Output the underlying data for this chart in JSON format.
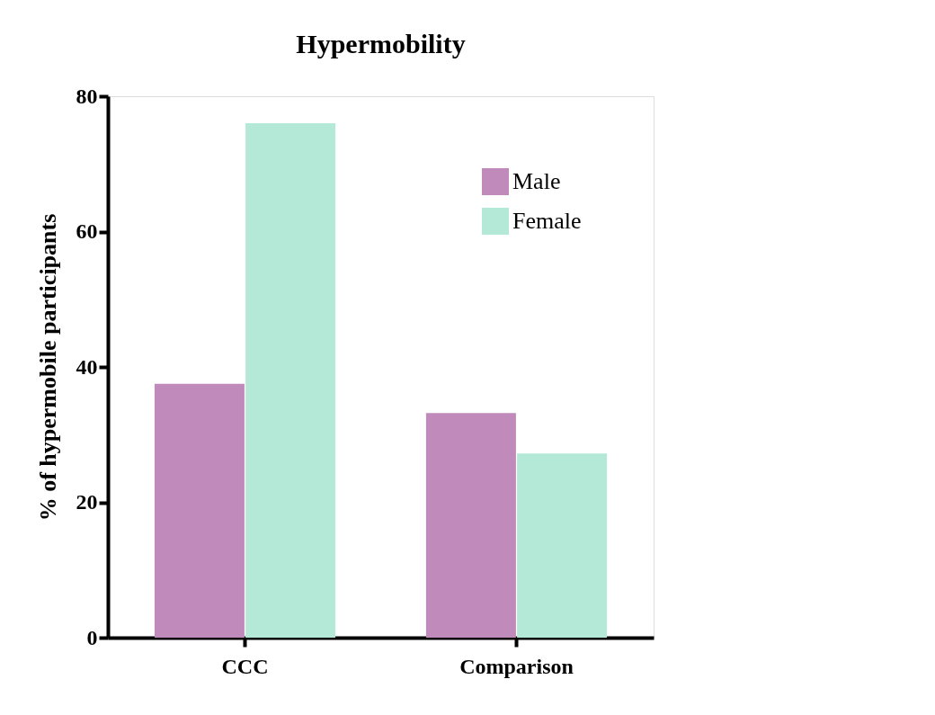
{
  "chart_data": {
    "type": "bar",
    "title": "Hypermobility",
    "ylabel": "% of hypermobile participants",
    "categories": [
      "CCC",
      "Comparison"
    ],
    "series": [
      {
        "name": "Male",
        "color": "#c08bba",
        "values": [
          37.5,
          33.2
        ]
      },
      {
        "name": "Female",
        "color": "#b5e9d7",
        "values": [
          76.0,
          27.2
        ]
      }
    ],
    "ylim": [
      0,
      80
    ],
    "yticks": [
      0,
      20,
      40,
      60,
      80
    ],
    "grid": false,
    "legend": "top right"
  }
}
